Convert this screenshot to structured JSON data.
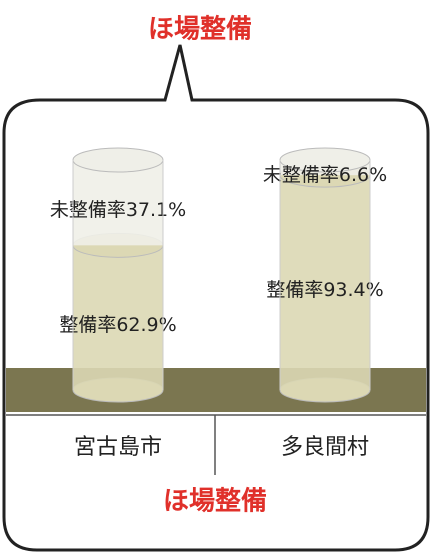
{
  "chart_data": {
    "type": "cylinder",
    "title": "ほ場整備",
    "caption": "ほ場整備",
    "categories": [
      "宮古島市",
      "多良間村"
    ],
    "series": [
      {
        "color": "#dcd8b4",
        "values": [
          62.9,
          93.4
        ],
        "value_labels": [
          "整備率62.9%",
          "整備率93.4%"
        ]
      },
      {
        "color": "#efefe8",
        "values": [
          37.1,
          6.6
        ],
        "value_labels": [
          "未整備率37.1%",
          "未整備率6.6%"
        ]
      }
    ],
    "ylim": [
      0,
      100
    ]
  }
}
